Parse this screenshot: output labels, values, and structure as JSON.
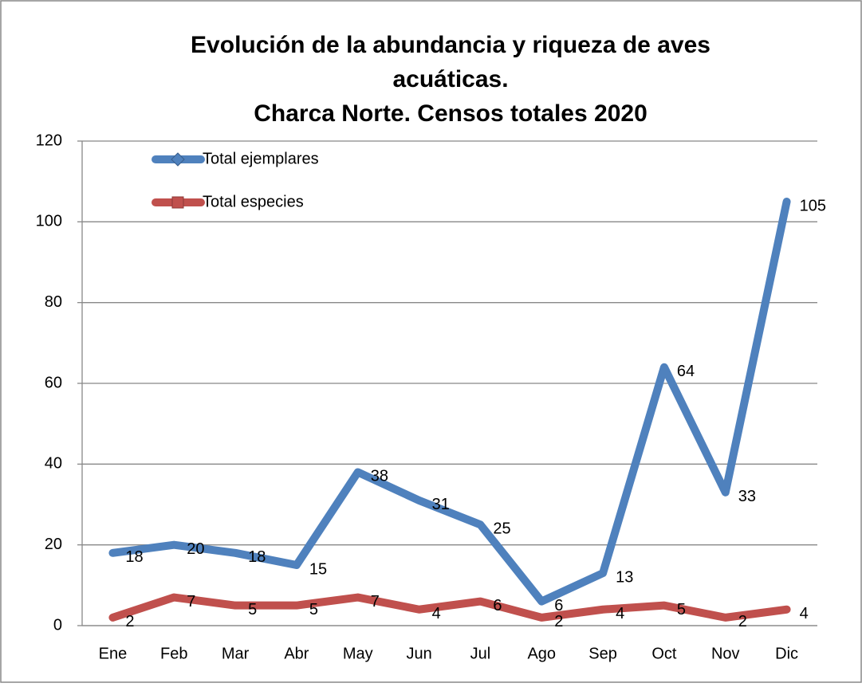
{
  "chart_data": {
    "type": "line",
    "title": [
      "Evolución de la abundancia y riqueza de aves",
      "acuáticas.",
      "Charca Norte. Censos totales 2020"
    ],
    "categories": [
      "Ene",
      "Feb",
      "Mar",
      "Abr",
      "May",
      "Jun",
      "Jul",
      "Ago",
      "Sep",
      "Oct",
      "Nov",
      "Dic"
    ],
    "series": [
      {
        "name": "Total ejemplares",
        "color": "#4f81bd",
        "values": [
          18,
          20,
          18,
          15,
          38,
          31,
          25,
          6,
          13,
          64,
          33,
          105
        ]
      },
      {
        "name": "Total especies",
        "color": "#c0504d",
        "values": [
          2,
          7,
          5,
          5,
          7,
          4,
          6,
          2,
          4,
          5,
          2,
          4
        ]
      }
    ],
    "ylim": [
      0,
      120
    ],
    "yticks": [
      0,
      20,
      40,
      60,
      80,
      100,
      120
    ],
    "grid": true,
    "legend": "top-left",
    "data_labels": true
  }
}
